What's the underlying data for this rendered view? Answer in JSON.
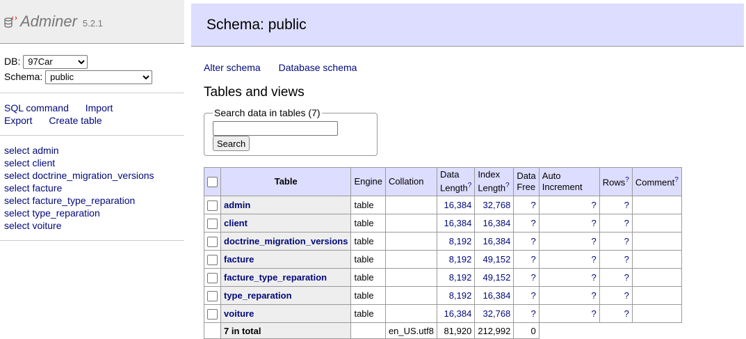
{
  "app": {
    "name": "Adminer",
    "version": "5.2.1"
  },
  "menu": {
    "db_label": "DB:",
    "db_value": "97Car",
    "schema_label": "Schema:",
    "schema_value": "public",
    "links": [
      "SQL command",
      "Import",
      "Export",
      "Create table"
    ],
    "tables": [
      "select admin",
      "select client",
      "select doctrine_migration_versions",
      "select facture",
      "select facture_type_reparation",
      "select type_reparation",
      "select voiture"
    ]
  },
  "page": {
    "title": "Schema: public",
    "alter_schema": "Alter schema",
    "database_schema": "Database schema",
    "section_title": "Tables and views",
    "search_legend": "Search data in tables (7)",
    "search_button": "Search",
    "search_value": ""
  },
  "table": {
    "headers": {
      "table": "Table",
      "engine": "Engine",
      "collation": "Collation",
      "data_length": [
        "Data",
        "Length"
      ],
      "index_length": [
        "Index",
        "Length"
      ],
      "data_free": [
        "Data",
        "Free"
      ],
      "auto_increment": [
        "Auto",
        "Increment"
      ],
      "rows": "Rows",
      "comment": "Comment",
      "help_mark": "?"
    },
    "rows": [
      {
        "name": "admin",
        "engine": "table",
        "collation": "",
        "data_length": "16,384",
        "index_length": "32,768",
        "data_free": "?",
        "auto_increment": "?",
        "rows": "?",
        "comment": ""
      },
      {
        "name": "client",
        "engine": "table",
        "collation": "",
        "data_length": "16,384",
        "index_length": "16,384",
        "data_free": "?",
        "auto_increment": "?",
        "rows": "?",
        "comment": ""
      },
      {
        "name": "doctrine_migration_versions",
        "engine": "table",
        "collation": "",
        "data_length": "8,192",
        "index_length": "16,384",
        "data_free": "?",
        "auto_increment": "?",
        "rows": "?",
        "comment": ""
      },
      {
        "name": "facture",
        "engine": "table",
        "collation": "",
        "data_length": "8,192",
        "index_length": "49,152",
        "data_free": "?",
        "auto_increment": "?",
        "rows": "?",
        "comment": ""
      },
      {
        "name": "facture_type_reparation",
        "engine": "table",
        "collation": "",
        "data_length": "8,192",
        "index_length": "49,152",
        "data_free": "?",
        "auto_increment": "?",
        "rows": "?",
        "comment": ""
      },
      {
        "name": "type_reparation",
        "engine": "table",
        "collation": "",
        "data_length": "8,192",
        "index_length": "16,384",
        "data_free": "?",
        "auto_increment": "?",
        "rows": "?",
        "comment": ""
      },
      {
        "name": "voiture",
        "engine": "table",
        "collation": "",
        "data_length": "16,384",
        "index_length": "32,768",
        "data_free": "?",
        "auto_increment": "?",
        "rows": "?",
        "comment": ""
      }
    ],
    "footer": {
      "label": "7 in total",
      "collation": "en_US.utf8",
      "data_length": "81,920",
      "index_length": "212,992",
      "data_free": "0"
    }
  }
}
